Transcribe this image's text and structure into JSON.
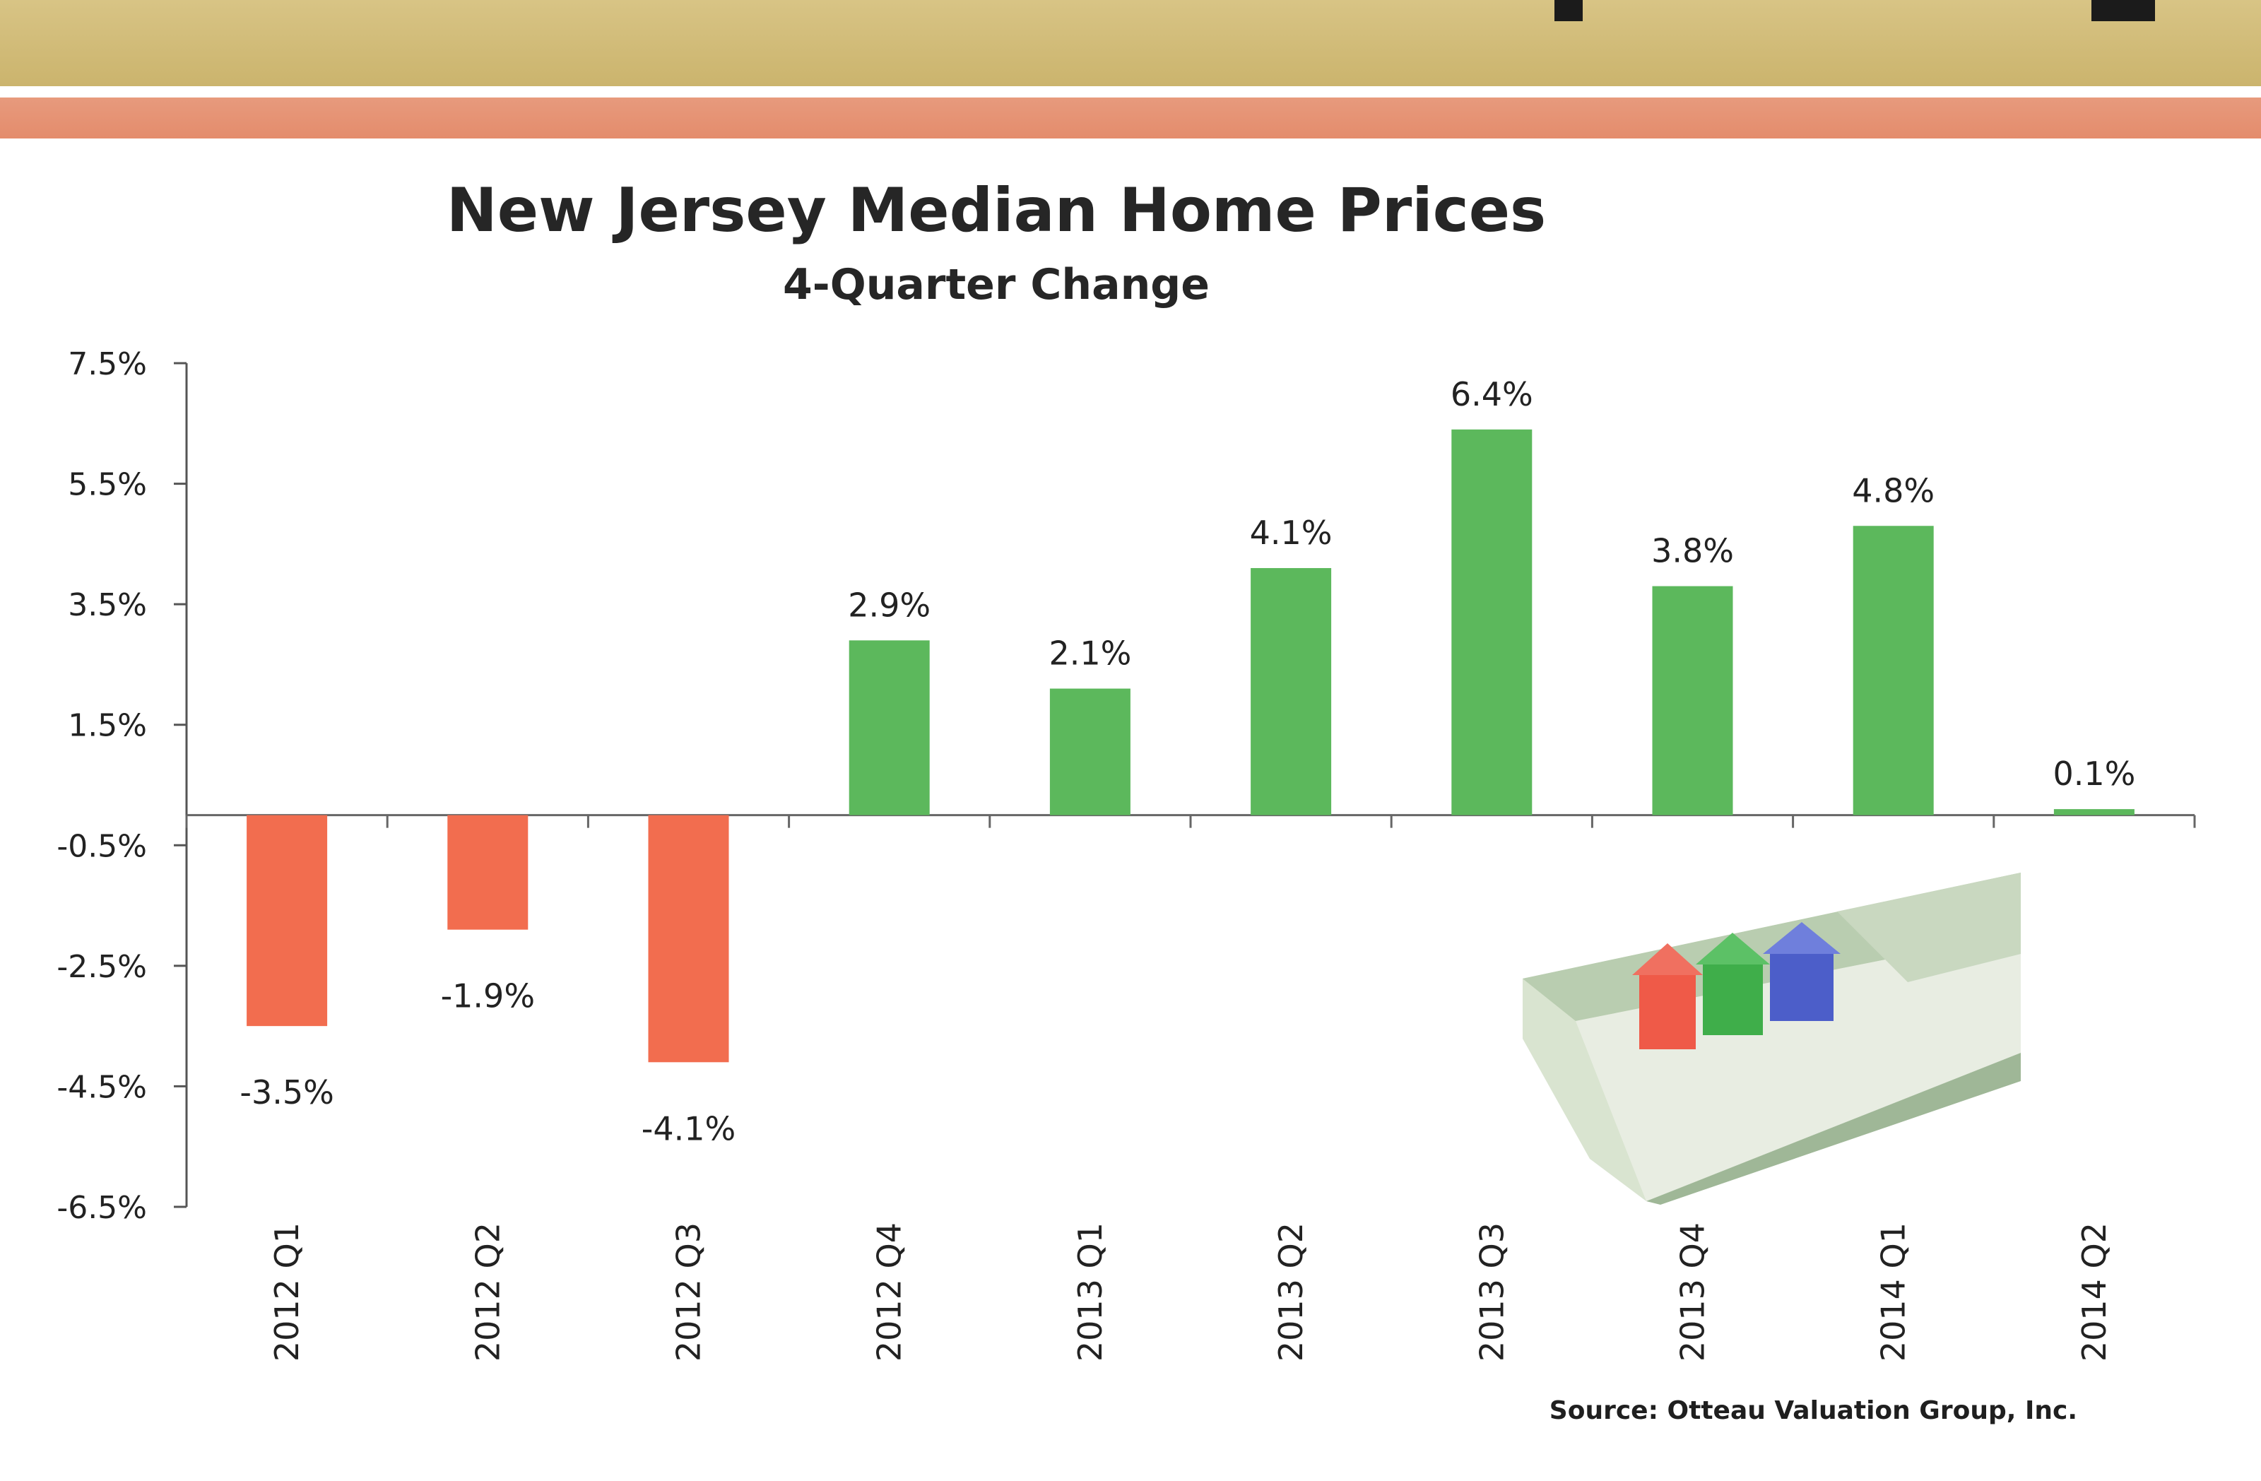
{
  "header": {
    "band_color": "#cbb46d",
    "stripe_color": "#e48c6c"
  },
  "chart_data": {
    "type": "bar",
    "title": "New Jersey  Median Home Prices",
    "subtitle": "4-Quarter Change",
    "categories": [
      "2012 Q1",
      "2012 Q2",
      "2012 Q3",
      "2012 Q4",
      "2013 Q1",
      "2013 Q2",
      "2013 Q3",
      "2013 Q4",
      "2014 Q1",
      "2014 Q2"
    ],
    "values": [
      -3.5,
      -1.9,
      -4.1,
      2.9,
      2.1,
      4.1,
      6.4,
      3.8,
      4.8,
      0.1
    ],
    "data_labels": [
      "-3.5%",
      "-1.9%",
      "-4.1%",
      "2.9%",
      "2.1%",
      "4.1%",
      "6.4%",
      "3.8%",
      "4.8%",
      "0.1%"
    ],
    "yticks": [
      7.5,
      5.5,
      3.5,
      1.5,
      -0.5,
      -2.5,
      -4.5,
      -6.5
    ],
    "ytick_labels": [
      "7.5%",
      "5.5%",
      "3.5%",
      "1.5%",
      "-0.5%",
      "-2.5%",
      "-4.5%",
      "-6.5%"
    ],
    "ylim": [
      -6.5,
      7.5
    ],
    "baseline": 0,
    "xlabel": "",
    "ylabel": "",
    "grid": false,
    "positive_color": "#5cb85c",
    "negative_color": "#f26d4f",
    "source": "Source: Otteau Valuation Group, Inc."
  }
}
